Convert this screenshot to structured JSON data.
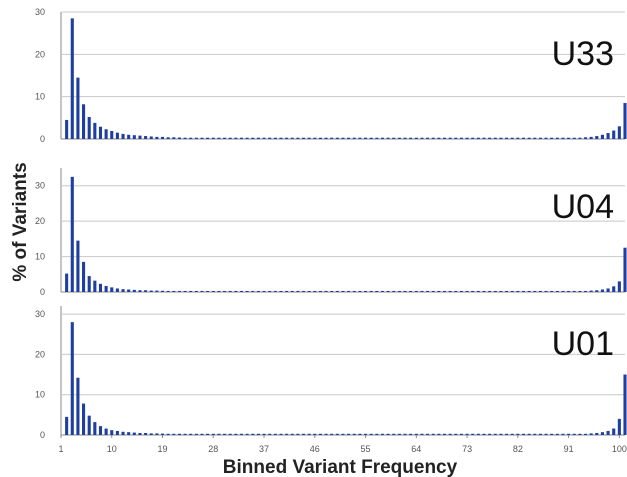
{
  "chart_data": {
    "type": "bar",
    "ylabel": "% of Variants",
    "xlabel": "Binned Variant Frequency",
    "x_ticks": [
      "1",
      "10",
      "19",
      "28",
      "37",
      "46",
      "55",
      "64",
      "73",
      "82",
      "91",
      "100"
    ],
    "xlim": [
      1,
      101
    ],
    "grid": true,
    "bar_color": "#1f3fa0",
    "panels": [
      {
        "label": "U33",
        "ylim": [
          0,
          30
        ],
        "y_ticks": [
          "0",
          "10",
          "20",
          "30"
        ],
        "x": [
          2,
          3,
          4,
          5,
          6,
          7,
          8,
          9,
          10,
          11,
          12,
          13,
          14,
          15,
          16,
          17,
          18,
          19,
          20,
          21,
          22,
          23,
          24,
          25,
          26,
          27,
          28,
          29,
          30,
          31,
          32,
          33,
          34,
          35,
          36,
          37,
          38,
          39,
          40,
          41,
          42,
          43,
          44,
          45,
          46,
          47,
          48,
          49,
          50,
          51,
          52,
          53,
          54,
          55,
          56,
          57,
          58,
          59,
          60,
          61,
          62,
          63,
          64,
          65,
          66,
          67,
          68,
          69,
          70,
          71,
          72,
          73,
          74,
          75,
          76,
          77,
          78,
          79,
          80,
          81,
          82,
          83,
          84,
          85,
          86,
          87,
          88,
          89,
          90,
          91,
          92,
          93,
          94,
          95,
          96,
          97,
          98,
          99,
          100,
          101
        ],
        "values": [
          4.5,
          28.5,
          14.5,
          8.2,
          5.2,
          3.8,
          2.9,
          2.3,
          1.9,
          1.5,
          1.2,
          1.0,
          0.9,
          0.8,
          0.7,
          0.6,
          0.5,
          0.5,
          0.4,
          0.4,
          0.35,
          0.3,
          0.3,
          0.3,
          0.3,
          0.3,
          0.3,
          0.3,
          0.3,
          0.3,
          0.3,
          0.3,
          0.3,
          0.3,
          0.3,
          0.3,
          0.3,
          0.3,
          0.3,
          0.3,
          0.3,
          0.3,
          0.3,
          0.3,
          0.3,
          0.3,
          0.3,
          0.3,
          0.3,
          0.3,
          0.3,
          0.3,
          0.3,
          0.3,
          0.3,
          0.3,
          0.3,
          0.3,
          0.3,
          0.3,
          0.3,
          0.3,
          0.3,
          0.3,
          0.3,
          0.3,
          0.3,
          0.3,
          0.3,
          0.3,
          0.3,
          0.3,
          0.3,
          0.3,
          0.3,
          0.3,
          0.3,
          0.3,
          0.3,
          0.3,
          0.3,
          0.3,
          0.3,
          0.3,
          0.3,
          0.3,
          0.3,
          0.3,
          0.3,
          0.3,
          0.3,
          0.3,
          0.4,
          0.5,
          0.7,
          1.0,
          1.4,
          2.0,
          3.0,
          8.5
        ]
      },
      {
        "label": "U04",
        "ylim": [
          0,
          35
        ],
        "y_ticks": [
          "0",
          "10",
          "20",
          "30"
        ],
        "x": [
          2,
          3,
          4,
          5,
          6,
          7,
          8,
          9,
          10,
          11,
          12,
          13,
          14,
          15,
          16,
          17,
          18,
          19,
          20,
          21,
          22,
          23,
          24,
          25,
          26,
          27,
          28,
          29,
          30,
          31,
          32,
          33,
          34,
          35,
          36,
          37,
          38,
          39,
          40,
          41,
          42,
          43,
          44,
          45,
          46,
          47,
          48,
          49,
          50,
          51,
          52,
          53,
          54,
          55,
          56,
          57,
          58,
          59,
          60,
          61,
          62,
          63,
          64,
          65,
          66,
          67,
          68,
          69,
          70,
          71,
          72,
          73,
          74,
          75,
          76,
          77,
          78,
          79,
          80,
          81,
          82,
          83,
          84,
          85,
          86,
          87,
          88,
          89,
          90,
          91,
          92,
          93,
          94,
          95,
          96,
          97,
          98,
          99,
          100,
          101
        ],
        "values": [
          5.2,
          32.5,
          14.5,
          8.5,
          4.5,
          3.2,
          2.3,
          1.7,
          1.3,
          1.0,
          0.8,
          0.7,
          0.6,
          0.5,
          0.5,
          0.4,
          0.4,
          0.35,
          0.3,
          0.3,
          0.3,
          0.3,
          0.3,
          0.3,
          0.3,
          0.3,
          0.3,
          0.3,
          0.3,
          0.3,
          0.3,
          0.3,
          0.3,
          0.3,
          0.3,
          0.3,
          0.3,
          0.3,
          0.3,
          0.3,
          0.3,
          0.3,
          0.3,
          0.3,
          0.3,
          0.3,
          0.3,
          0.3,
          0.3,
          0.3,
          0.3,
          0.3,
          0.3,
          0.3,
          0.3,
          0.3,
          0.3,
          0.3,
          0.3,
          0.3,
          0.3,
          0.3,
          0.3,
          0.3,
          0.3,
          0.3,
          0.3,
          0.3,
          0.3,
          0.3,
          0.3,
          0.3,
          0.3,
          0.3,
          0.3,
          0.3,
          0.3,
          0.3,
          0.3,
          0.3,
          0.3,
          0.3,
          0.3,
          0.3,
          0.3,
          0.3,
          0.3,
          0.3,
          0.3,
          0.3,
          0.3,
          0.3,
          0.3,
          0.4,
          0.5,
          0.7,
          1.0,
          1.6,
          3.0,
          12.5
        ]
      },
      {
        "label": "U01",
        "ylim": [
          0,
          32
        ],
        "y_ticks": [
          "0",
          "10",
          "20",
          "30"
        ],
        "x": [
          2,
          3,
          4,
          5,
          6,
          7,
          8,
          9,
          10,
          11,
          12,
          13,
          14,
          15,
          16,
          17,
          18,
          19,
          20,
          21,
          22,
          23,
          24,
          25,
          26,
          27,
          28,
          29,
          30,
          31,
          32,
          33,
          34,
          35,
          36,
          37,
          38,
          39,
          40,
          41,
          42,
          43,
          44,
          45,
          46,
          47,
          48,
          49,
          50,
          51,
          52,
          53,
          54,
          55,
          56,
          57,
          58,
          59,
          60,
          61,
          62,
          63,
          64,
          65,
          66,
          67,
          68,
          69,
          70,
          71,
          72,
          73,
          74,
          75,
          76,
          77,
          78,
          79,
          80,
          81,
          82,
          83,
          84,
          85,
          86,
          87,
          88,
          89,
          90,
          91,
          92,
          93,
          94,
          95,
          96,
          97,
          98,
          99,
          100,
          101
        ],
        "values": [
          4.5,
          28.0,
          14.2,
          7.8,
          4.8,
          3.2,
          2.2,
          1.6,
          1.2,
          1.0,
          0.8,
          0.7,
          0.6,
          0.5,
          0.5,
          0.4,
          0.4,
          0.35,
          0.3,
          0.3,
          0.3,
          0.3,
          0.3,
          0.3,
          0.3,
          0.3,
          0.3,
          0.3,
          0.3,
          0.3,
          0.3,
          0.3,
          0.3,
          0.3,
          0.3,
          0.3,
          0.3,
          0.3,
          0.3,
          0.3,
          0.3,
          0.3,
          0.3,
          0.3,
          0.3,
          0.3,
          0.3,
          0.3,
          0.3,
          0.3,
          0.3,
          0.3,
          0.3,
          0.3,
          0.3,
          0.3,
          0.3,
          0.3,
          0.3,
          0.3,
          0.3,
          0.3,
          0.3,
          0.3,
          0.3,
          0.3,
          0.3,
          0.3,
          0.3,
          0.3,
          0.3,
          0.3,
          0.3,
          0.3,
          0.3,
          0.3,
          0.3,
          0.3,
          0.3,
          0.3,
          0.3,
          0.3,
          0.3,
          0.3,
          0.3,
          0.3,
          0.3,
          0.3,
          0.3,
          0.3,
          0.3,
          0.3,
          0.3,
          0.4,
          0.5,
          0.7,
          1.0,
          1.6,
          4.0,
          15.0
        ]
      }
    ]
  }
}
